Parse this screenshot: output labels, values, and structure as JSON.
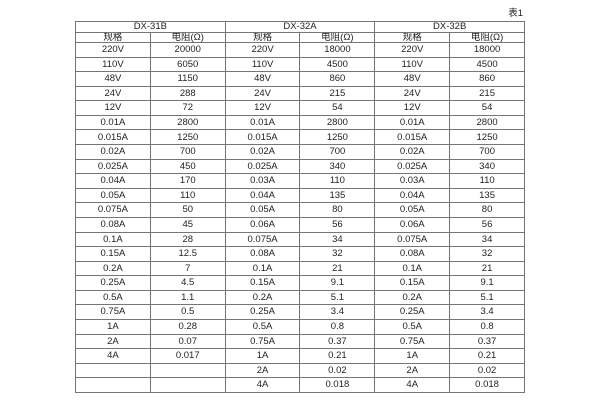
{
  "page": {
    "table_label": "表1"
  },
  "table": {
    "groups": [
      {
        "name": "DX-31B",
        "col_headers": [
          "规格",
          "电阻(Ω)"
        ]
      },
      {
        "name": "DX-32A",
        "col_headers": [
          "规格",
          "电阻(Ω)"
        ]
      },
      {
        "name": "DX-32B",
        "col_headers": [
          "规格",
          "电阻(Ω)"
        ]
      }
    ],
    "rows": [
      [
        "220V",
        "20000",
        "220V",
        "18000",
        "220V",
        "18000"
      ],
      [
        "110V",
        "6050",
        "110V",
        "4500",
        "110V",
        "4500"
      ],
      [
        "48V",
        "1150",
        "48V",
        "860",
        "48V",
        "860"
      ],
      [
        "24V",
        "288",
        "24V",
        "215",
        "24V",
        "215"
      ],
      [
        "12V",
        "72",
        "12V",
        "54",
        "12V",
        "54"
      ],
      [
        "0.01A",
        "2800",
        "0.01A",
        "2800",
        "0.01A",
        "2800"
      ],
      [
        "0.015A",
        "1250",
        "0.015A",
        "1250",
        "0.015A",
        "1250"
      ],
      [
        "0.02A",
        "700",
        "0.02A",
        "700",
        "0.02A",
        "700"
      ],
      [
        "0.025A",
        "450",
        "0.025A",
        "340",
        "0.025A",
        "340"
      ],
      [
        "0.04A",
        "170",
        "0.03A",
        "110",
        "0.03A",
        "110"
      ],
      [
        "0.05A",
        "110",
        "0.04A",
        "135",
        "0.04A",
        "135"
      ],
      [
        "0.075A",
        "50",
        "0.05A",
        "80",
        "0.05A",
        "80"
      ],
      [
        "0.08A",
        "45",
        "0.06A",
        "56",
        "0.06A",
        "56"
      ],
      [
        "0.1A",
        "28",
        "0.075A",
        "34",
        "0.075A",
        "34"
      ],
      [
        "0.15A",
        "12.5",
        "0.08A",
        "32",
        "0.08A",
        "32"
      ],
      [
        "0.2A",
        "7",
        "0.1A",
        "21",
        "0.1A",
        "21"
      ],
      [
        "0.25A",
        "4.5",
        "0.15A",
        "9.1",
        "0.15A",
        "9.1"
      ],
      [
        "0.5A",
        "1.1",
        "0.2A",
        "5.1",
        "0.2A",
        "5.1"
      ],
      [
        "0.75A",
        "0.5",
        "0.25A",
        "3.4",
        "0.25A",
        "3.4"
      ],
      [
        "1A",
        "0.28",
        "0.5A",
        "0.8",
        "0.5A",
        "0.8"
      ],
      [
        "2A",
        "0.07",
        "0.75A",
        "0.37",
        "0.75A",
        "0.37"
      ],
      [
        "4A",
        "0.017",
        "1A",
        "0.21",
        "1A",
        "0.21"
      ],
      [
        "",
        "",
        "2A",
        "0.02",
        "2A",
        "0.02"
      ],
      [
        "",
        "",
        "4A",
        "0.018",
        "4A",
        "0.018"
      ]
    ],
    "colors": {
      "border": "#767676",
      "text": "#1f1f1f",
      "background": "#ffffff"
    }
  }
}
